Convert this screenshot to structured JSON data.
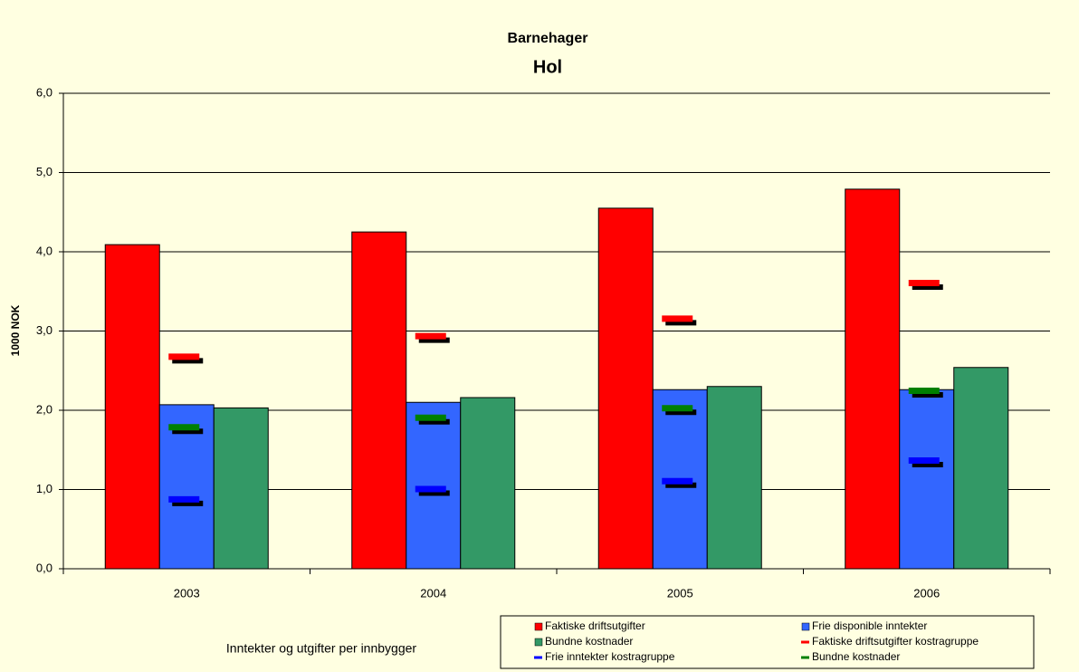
{
  "chart_data": {
    "type": "bar",
    "title": "Barnehager",
    "subtitle": "Hol",
    "ylabel": "1000 NOK",
    "xlabel": "Inntekter og utgifter per innbygger",
    "categories": [
      "2003",
      "2004",
      "2005",
      "2006"
    ],
    "series": [
      {
        "name": "Faktiske driftsutgifter",
        "color": "#ff0000",
        "mark": "bar",
        "values": [
          4.09,
          4.25,
          4.55,
          4.79
        ]
      },
      {
        "name": "Frie disponible inntekter",
        "color": "#3366ff",
        "mark": "bar",
        "values": [
          2.07,
          2.1,
          2.26,
          2.26
        ]
      },
      {
        "name": "Bundne kostnader",
        "color": "#339966",
        "mark": "bar",
        "values": [
          2.03,
          2.16,
          2.3,
          2.54
        ]
      },
      {
        "name": "Faktiske driftsutgifter kostragruppe",
        "color": "#ff0000",
        "mark": "dash",
        "values": [
          2.67,
          2.93,
          3.15,
          3.6
        ]
      },
      {
        "name": "Frie inntekter kostragruppe",
        "color": "#0000ff",
        "mark": "dash",
        "values": [
          0.87,
          1.0,
          1.1,
          1.36
        ]
      },
      {
        "name": "Bundne kostnader",
        "color": "#008000",
        "mark": "dash",
        "values": [
          1.78,
          1.9,
          2.02,
          2.24
        ]
      }
    ],
    "ylim": [
      0,
      6
    ],
    "yticks": [
      {
        "value": 0,
        "label": "0,0"
      },
      {
        "value": 1,
        "label": "1,0"
      },
      {
        "value": 2,
        "label": "2,0"
      },
      {
        "value": 3,
        "label": "3,0"
      },
      {
        "value": 4,
        "label": "4,0"
      },
      {
        "value": 5,
        "label": "5,0"
      },
      {
        "value": 6,
        "label": "6,0"
      }
    ],
    "grid": true
  }
}
